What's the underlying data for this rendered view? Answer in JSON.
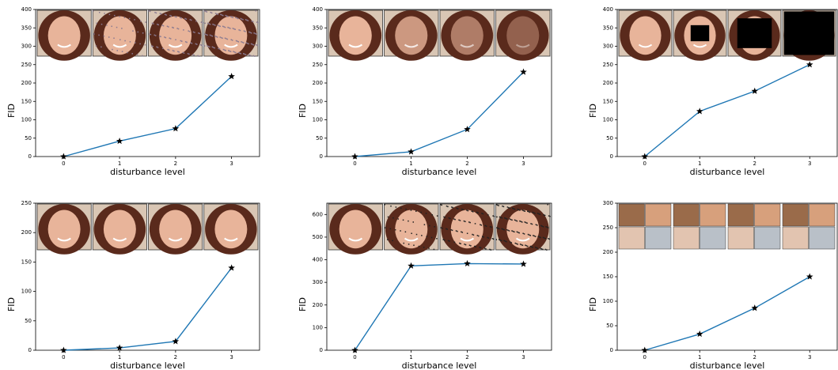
{
  "chart_data": [
    {
      "type": "line",
      "x": [
        0,
        1,
        2,
        3
      ],
      "values": [
        0,
        42,
        76,
        218
      ],
      "color": "#1f77b4",
      "xlim": [
        -0.5,
        3.5
      ],
      "xticks": [
        0,
        1,
        2,
        3
      ],
      "ylim": [
        0,
        400
      ],
      "yticks": [
        0,
        50,
        100,
        150,
        200,
        250,
        300,
        350,
        400
      ],
      "xlabel": "disturbance level",
      "ylabel": "FID"
    },
    {
      "type": "line",
      "x": [
        0,
        1,
        2,
        3
      ],
      "values": [
        0,
        13,
        74,
        230
      ],
      "color": "#1f77b4",
      "xlim": [
        -0.5,
        3.5
      ],
      "xticks": [
        0,
        1,
        2,
        3
      ],
      "ylim": [
        0,
        400
      ],
      "yticks": [
        0,
        50,
        100,
        150,
        200,
        250,
        300,
        350,
        400
      ],
      "xlabel": "disturbance level",
      "ylabel": "FID"
    },
    {
      "type": "line",
      "x": [
        0,
        1,
        2,
        3
      ],
      "values": [
        0,
        123,
        178,
        250
      ],
      "color": "#1f77b4",
      "xlim": [
        -0.5,
        3.5
      ],
      "xticks": [
        0,
        1,
        2,
        3
      ],
      "ylim": [
        0,
        400
      ],
      "yticks": [
        0,
        50,
        100,
        150,
        200,
        250,
        300,
        350,
        400
      ],
      "xlabel": "disturbance level",
      "ylabel": "FID"
    },
    {
      "type": "line",
      "x": [
        0,
        1,
        2,
        3
      ],
      "values": [
        0,
        4,
        15,
        140
      ],
      "color": "#1f77b4",
      "xlim": [
        -0.5,
        3.5
      ],
      "xticks": [
        0,
        1,
        2,
        3
      ],
      "ylim": [
        0,
        250
      ],
      "yticks": [
        0,
        50,
        100,
        150,
        200,
        250
      ],
      "xlabel": "disturbance level",
      "ylabel": "FID"
    },
    {
      "type": "line",
      "x": [
        0,
        1,
        2,
        3
      ],
      "values": [
        0,
        373,
        383,
        381
      ],
      "color": "#1f77b4",
      "xlim": [
        -0.5,
        3.5
      ],
      "xticks": [
        0,
        1,
        2,
        3
      ],
      "ylim": [
        0,
        650
      ],
      "yticks": [
        0,
        100,
        200,
        300,
        400,
        500,
        600
      ],
      "xlabel": "disturbance level",
      "ylabel": "FID"
    },
    {
      "type": "line",
      "x": [
        0,
        1,
        2,
        3
      ],
      "values": [
        0,
        33,
        86,
        150
      ],
      "color": "#1f77b4",
      "xlim": [
        -0.5,
        3.5
      ],
      "xticks": [
        0,
        1,
        2,
        3
      ],
      "ylim": [
        0,
        300
      ],
      "yticks": [
        0,
        50,
        100,
        150,
        200,
        250,
        300
      ],
      "xlabel": "disturbance level",
      "ylabel": "FID"
    }
  ]
}
